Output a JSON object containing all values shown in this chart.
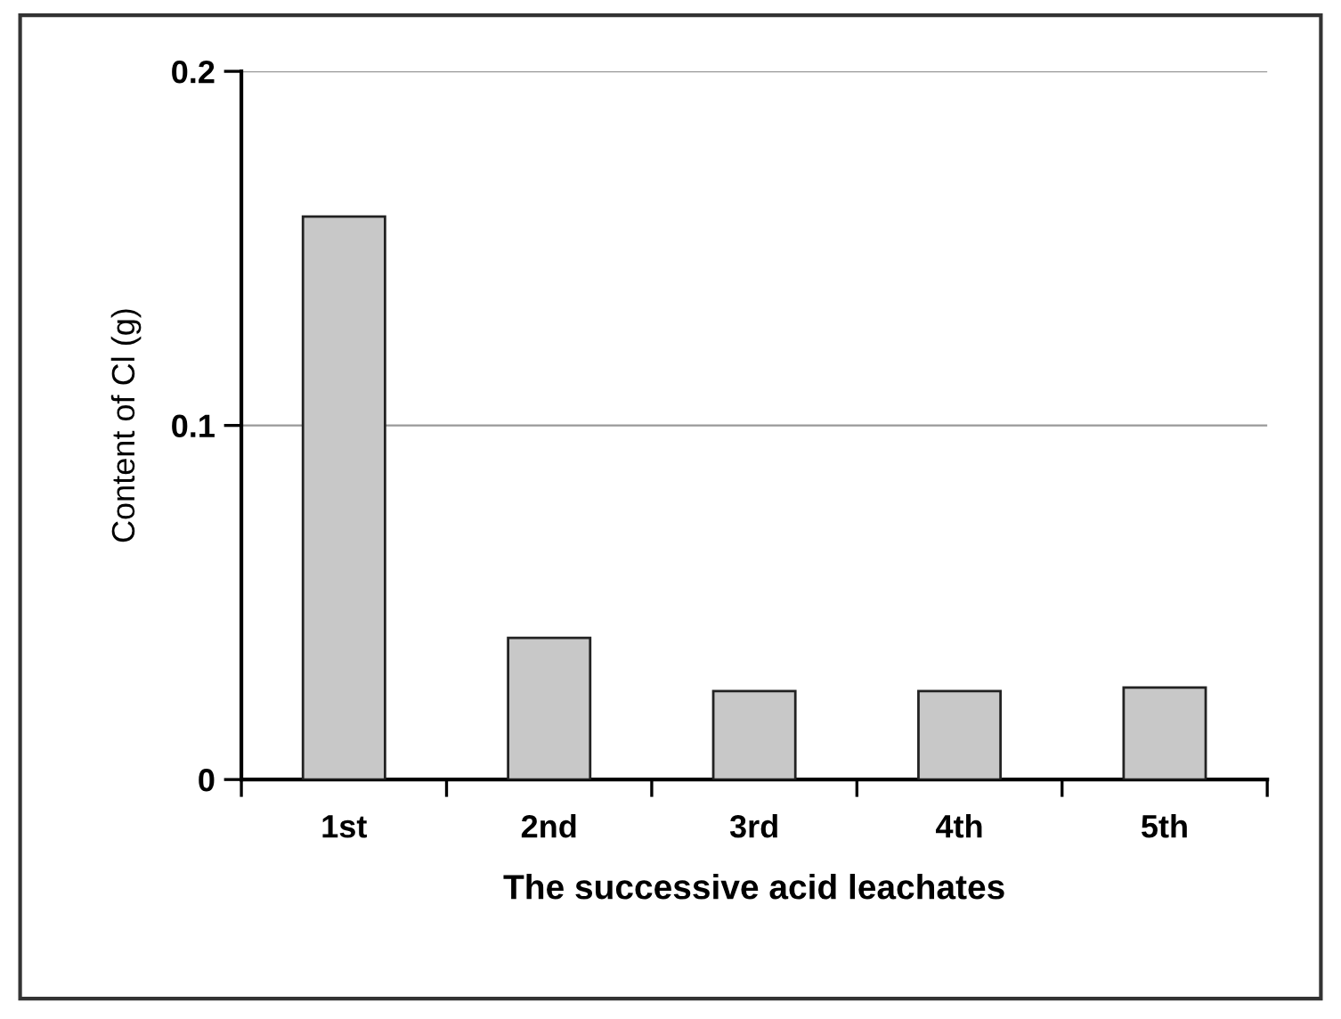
{
  "chart_data": {
    "type": "bar",
    "xlabel": "The successive acid leachates",
    "ylabel": "Content of Cl (g)",
    "categories": [
      "1st",
      "2nd",
      "3rd",
      "4th",
      "5th"
    ],
    "values": [
      0.159,
      0.04,
      0.025,
      0.025,
      0.026
    ],
    "color": "#c8c8c8",
    "ylim": [
      0,
      0.2
    ],
    "yticks": [
      0,
      0.1,
      0.2
    ],
    "grid": "y"
  }
}
